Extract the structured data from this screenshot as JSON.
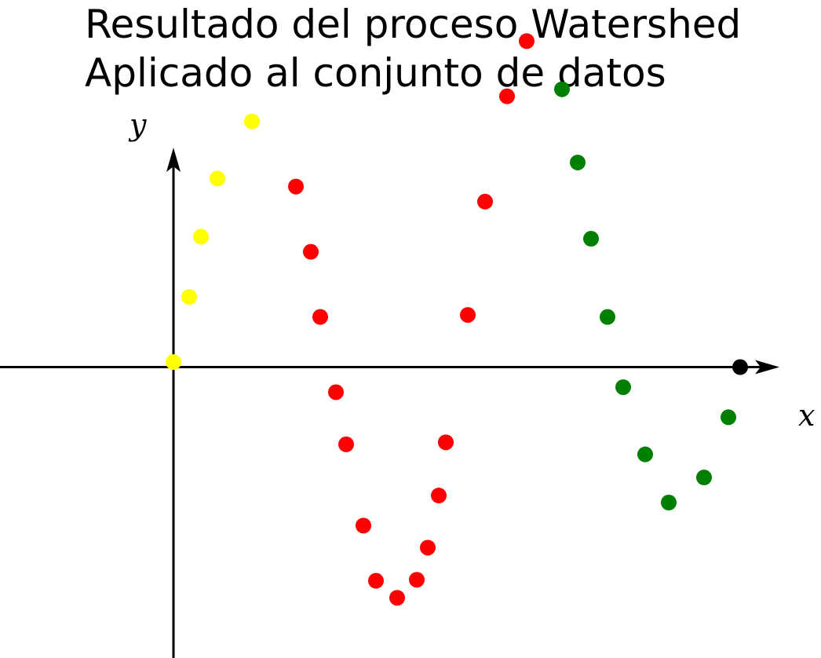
{
  "chart_data": {
    "type": "scatter",
    "title": [
      "Resultado del proceso Watershed",
      "Aplicado al conjunto de datos"
    ],
    "xlabel": "x",
    "ylabel": "y",
    "grid": false,
    "legend": "none",
    "xlim": [
      -2.21,
      8.25
    ],
    "ylim": [
      -2.9,
      3.66
    ],
    "series": [
      {
        "color": "#ffff00",
        "x": [
          0.0,
          0.2,
          0.35,
          0.56,
          1.0
        ],
        "y": [
          0.05,
          0.7,
          1.3,
          1.88,
          2.45
        ]
      },
      {
        "color": "#ff0000",
        "x": [
          1.56,
          1.75,
          1.87,
          2.07,
          2.2,
          2.42,
          2.58,
          2.85,
          3.1,
          3.24,
          3.38,
          3.47,
          3.75,
          3.97,
          4.25,
          4.5
        ],
        "y": [
          1.8,
          1.15,
          0.5,
          -0.25,
          -0.77,
          -1.58,
          -2.13,
          -2.3,
          -2.12,
          -1.8,
          -1.28,
          -0.75,
          0.52,
          1.65,
          2.7,
          3.25
        ]
      },
      {
        "color": "#008000",
        "x": [
          4.95,
          5.15,
          5.32,
          5.53,
          5.73,
          6.01,
          6.31,
          6.76,
          7.07
        ],
        "y": [
          2.77,
          2.04,
          1.28,
          0.5,
          -0.2,
          -0.87,
          -1.35,
          -1.1,
          -0.5
        ]
      },
      {
        "color": "#000000",
        "x": [
          7.22
        ],
        "y": [
          0.0
        ]
      }
    ]
  }
}
